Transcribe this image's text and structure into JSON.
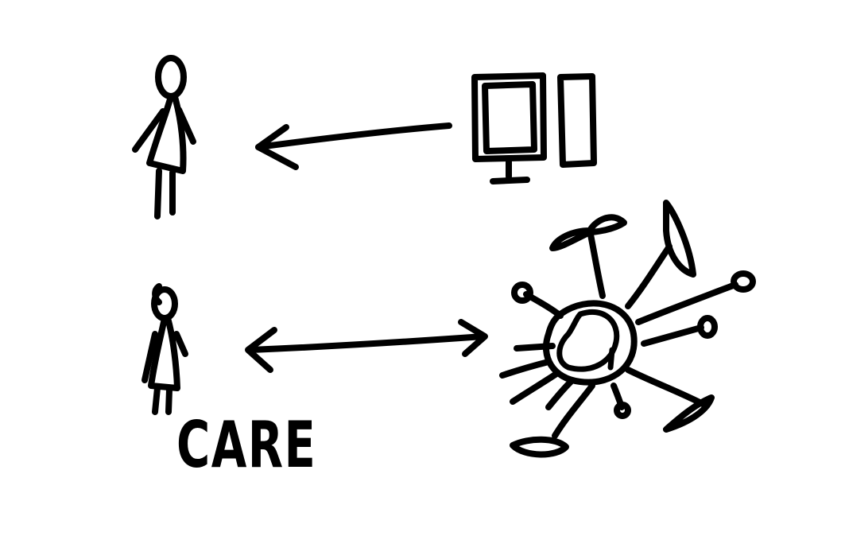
{
  "diagram": {
    "ink_color": "#000000",
    "background_color": "#ffffff",
    "nodes": [
      {
        "id": "person-top",
        "kind": "person-icon"
      },
      {
        "id": "computer",
        "kind": "computer-monitor-icon"
      },
      {
        "id": "person-bottom",
        "kind": "person-icon"
      },
      {
        "id": "network",
        "kind": "network-cell-icon"
      }
    ],
    "edges": [
      {
        "from": "computer",
        "to": "person-top",
        "direction": "one-way"
      },
      {
        "from": "person-bottom",
        "to": "network",
        "direction": "two-way"
      }
    ],
    "label": "CARE"
  }
}
